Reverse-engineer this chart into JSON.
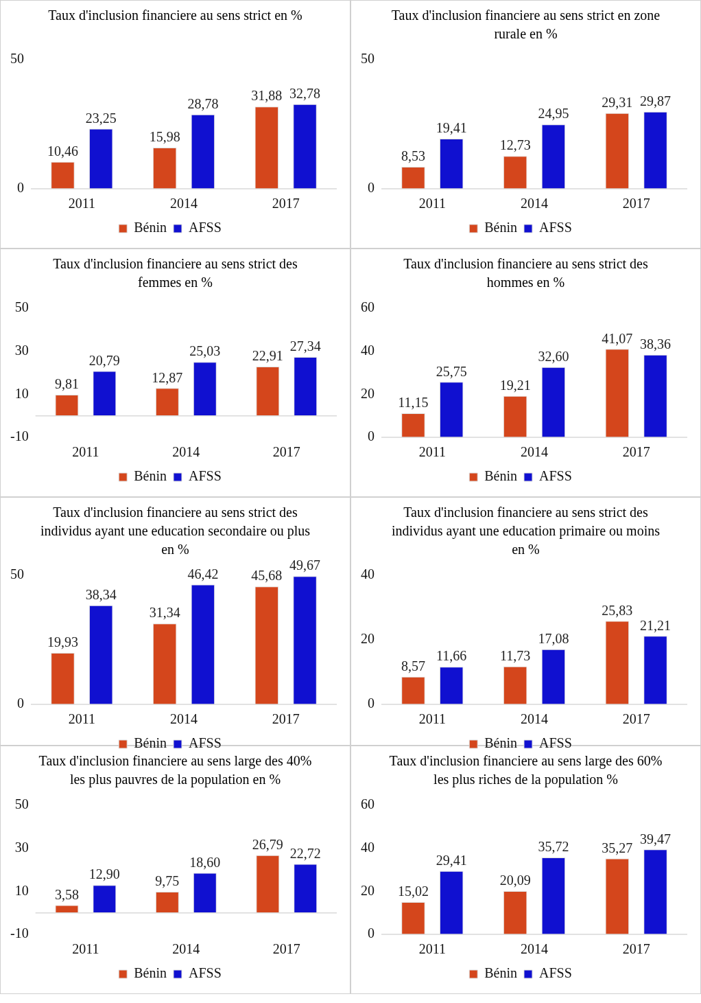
{
  "chart_data": [
    {
      "type": "bar",
      "title": "Taux d'inclusion financiere au sens strict en %",
      "categories": [
        "2011",
        "2014",
        "2017"
      ],
      "ylim": [
        0,
        50
      ],
      "yticks": [
        0,
        50
      ],
      "legend": "bottom",
      "series": [
        {
          "name": "Bénin",
          "color": "#d4461c",
          "values": [
            10.46,
            15.98,
            31.88
          ],
          "value_labels": [
            "10,46",
            "15,98",
            "31,88"
          ]
        },
        {
          "name": "AFSS",
          "color": "#1010d0",
          "values": [
            23.25,
            28.78,
            32.78
          ],
          "value_labels": [
            "23,25",
            "28,78",
            "32,78"
          ]
        }
      ]
    },
    {
      "type": "bar",
      "title": "Taux d'inclusion financiere au sens strict en zone rurale en %",
      "categories": [
        "2011",
        "2014",
        "2017"
      ],
      "ylim": [
        0,
        50
      ],
      "yticks": [
        0,
        50
      ],
      "legend": "bottom",
      "series": [
        {
          "name": "Bénin",
          "color": "#d4461c",
          "values": [
            8.53,
            12.73,
            29.31
          ],
          "value_labels": [
            "8,53",
            "12,73",
            "29,31"
          ]
        },
        {
          "name": "AFSS",
          "color": "#1010d0",
          "values": [
            19.41,
            24.95,
            29.87
          ],
          "value_labels": [
            "19,41",
            "24,95",
            "29,87"
          ]
        }
      ]
    },
    {
      "type": "bar",
      "title": "Taux d'inclusion financiere au sens strict des femmes en %",
      "categories": [
        "2011",
        "2014",
        "2017"
      ],
      "ylim": [
        -10,
        50
      ],
      "yticks": [
        -10,
        10,
        30,
        50
      ],
      "legend": "bottom",
      "series": [
        {
          "name": "Bénin",
          "color": "#d4461c",
          "values": [
            9.81,
            12.87,
            22.91
          ],
          "value_labels": [
            "9,81",
            "12,87",
            "22,91"
          ]
        },
        {
          "name": "AFSS",
          "color": "#1010d0",
          "values": [
            20.79,
            25.03,
            27.34
          ],
          "value_labels": [
            "20,79",
            "25,03",
            "27,34"
          ]
        }
      ]
    },
    {
      "type": "bar",
      "title": "Taux d'inclusion financiere au sens strict des hommes en %",
      "categories": [
        "2011",
        "2014",
        "2017"
      ],
      "ylim": [
        0,
        60
      ],
      "yticks": [
        0,
        20,
        40,
        60
      ],
      "legend": "bottom",
      "series": [
        {
          "name": "Bénin",
          "color": "#d4461c",
          "values": [
            11.15,
            19.21,
            41.07
          ],
          "value_labels": [
            "11,15",
            "19,21",
            "41,07"
          ]
        },
        {
          "name": "AFSS",
          "color": "#1010d0",
          "values": [
            25.75,
            32.6,
            38.36
          ],
          "value_labels": [
            "25,75",
            "32,60",
            "38,36"
          ]
        }
      ]
    },
    {
      "type": "bar",
      "title": "Taux d'inclusion financiere au sens strict des individus ayant une education secondaire ou plus en %",
      "categories": [
        "2011",
        "2014",
        "2017"
      ],
      "ylim": [
        0,
        50
      ],
      "yticks": [
        0,
        50
      ],
      "legend": "bottom",
      "series": [
        {
          "name": "Bénin",
          "color": "#d4461c",
          "values": [
            19.93,
            31.34,
            45.68
          ],
          "value_labels": [
            "19,93",
            "31,34",
            "45,68"
          ]
        },
        {
          "name": "AFSS",
          "color": "#1010d0",
          "values": [
            38.34,
            46.42,
            49.67
          ],
          "value_labels": [
            "38,34",
            "46,42",
            "49,67"
          ]
        }
      ]
    },
    {
      "type": "bar",
      "title": "Taux d'inclusion financiere au sens strict des individus ayant une education primaire ou moins en %",
      "categories": [
        "2011",
        "2014",
        "2017"
      ],
      "ylim": [
        0,
        40
      ],
      "yticks": [
        0,
        20,
        40
      ],
      "legend": "bottom",
      "series": [
        {
          "name": "Bénin",
          "color": "#d4461c",
          "values": [
            8.57,
            11.73,
            25.83
          ],
          "value_labels": [
            "8,57",
            "11,73",
            "25,83"
          ]
        },
        {
          "name": "AFSS",
          "color": "#1010d0",
          "values": [
            11.66,
            17.08,
            21.21
          ],
          "value_labels": [
            "11,66",
            "17,08",
            "21,21"
          ]
        }
      ]
    },
    {
      "type": "bar",
      "title": "Taux d'inclusion financiere au sens large des 40%  les plus pauvres de la population en %",
      "categories": [
        "2011",
        "2014",
        "2017"
      ],
      "ylim": [
        -10,
        50
      ],
      "yticks": [
        -10,
        10,
        30,
        50
      ],
      "legend": "bottom",
      "series": [
        {
          "name": "Bénin",
          "color": "#d4461c",
          "values": [
            3.58,
            9.75,
            26.79
          ],
          "value_labels": [
            "3,58",
            "9,75",
            "26,79"
          ]
        },
        {
          "name": "AFSS",
          "color": "#1010d0",
          "values": [
            12.9,
            18.6,
            22.72
          ],
          "value_labels": [
            "12,90",
            "18,60",
            "22,72"
          ]
        }
      ]
    },
    {
      "type": "bar",
      "title": "Taux d'inclusion financiere au sens large des 60%  les plus riches de la population %",
      "categories": [
        "2011",
        "2014",
        "2017"
      ],
      "ylim": [
        0,
        60
      ],
      "yticks": [
        0,
        20,
        40,
        60
      ],
      "legend": "bottom",
      "series": [
        {
          "name": "Bénin",
          "color": "#d4461c",
          "values": [
            15.02,
            20.09,
            35.27
          ],
          "value_labels": [
            "15,02",
            "20,09",
            "35,27"
          ]
        },
        {
          "name": "AFSS",
          "color": "#1010d0",
          "values": [
            29.41,
            35.72,
            39.47
          ],
          "value_labels": [
            "29,41",
            "35,72",
            "39,47"
          ]
        }
      ]
    }
  ]
}
